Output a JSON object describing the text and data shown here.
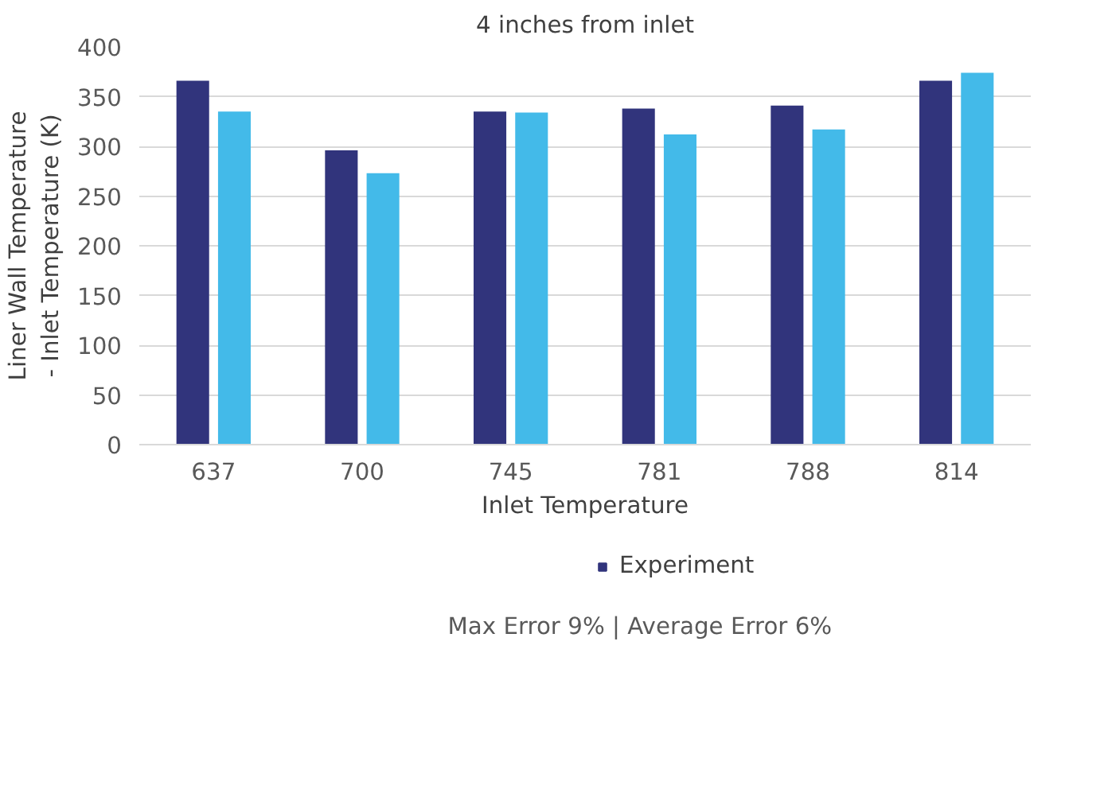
{
  "chart_data": {
    "type": "bar",
    "title": "4 inches from inlet",
    "xlabel": "Inlet Temperature",
    "ylabel": "Liner Wall Temperature - Inlet Temperature (K)",
    "categories": [
      "637",
      "700",
      "745",
      "781",
      "788",
      "814"
    ],
    "series": [
      {
        "name": "Experiment",
        "color": "#31347c",
        "values": [
          366,
          296,
          335,
          338,
          341,
          366
        ]
      },
      {
        "color": "#43bae9",
        "values": [
          335,
          273,
          334,
          312,
          317,
          374
        ]
      }
    ],
    "ylim": [
      0,
      400
    ],
    "yticks": [
      0,
      50,
      100,
      150,
      200,
      250,
      300,
      350,
      400
    ],
    "grid": "y",
    "legend": "bottom",
    "annotations": [
      "Max Error 9%   |   Average Error 6%"
    ]
  }
}
